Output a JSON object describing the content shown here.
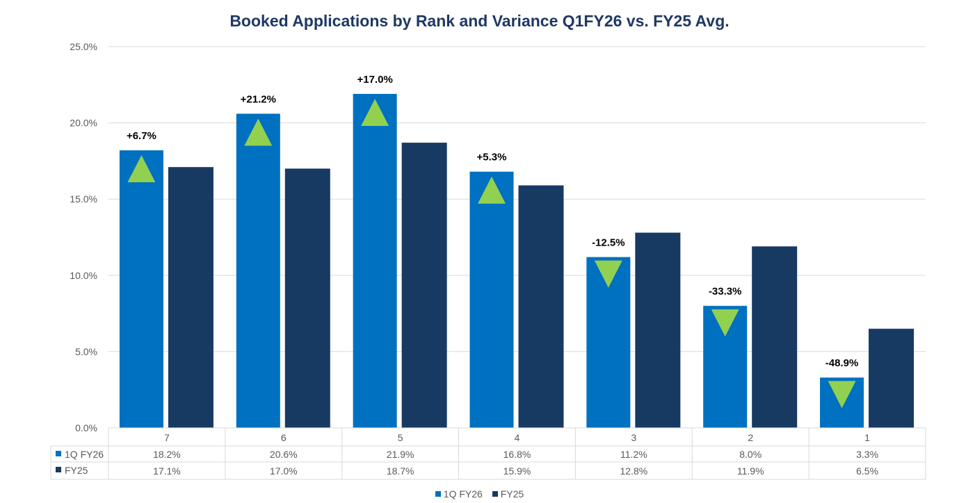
{
  "chart_data": {
    "type": "bar",
    "title": "Booked Applications by Rank and Variance Q1FY26 vs. FY25 Avg.",
    "categories": [
      "7",
      "6",
      "5",
      "4",
      "3",
      "2",
      "1"
    ],
    "series": [
      {
        "name": "1Q FY26",
        "color": "#0070C0",
        "values": [
          18.2,
          20.6,
          21.9,
          16.8,
          11.2,
          8.0,
          3.3
        ],
        "labels": [
          "18.2%",
          "20.6%",
          "21.9%",
          "16.8%",
          "11.2%",
          "8.0%",
          "3.3%"
        ]
      },
      {
        "name": "FY25",
        "color": "#173A63",
        "values": [
          17.1,
          17.0,
          18.7,
          15.9,
          12.8,
          11.9,
          6.5
        ],
        "labels": [
          "17.1%",
          "17.0%",
          "18.7%",
          "15.9%",
          "12.8%",
          "11.9%",
          "6.5%"
        ]
      }
    ],
    "variance_labels": [
      "+6.7%",
      "+21.2%",
      "+17.0%",
      "+5.3%",
      "-12.5%",
      "-33.3%",
      "-48.9%"
    ],
    "variance_direction": [
      "up",
      "up",
      "up",
      "up",
      "down",
      "down",
      "down"
    ],
    "variance_colors": {
      "up": "#92D050",
      "down": "#92D050"
    },
    "ylim": [
      0,
      25
    ],
    "yticks": [
      "0.0%",
      "5.0%",
      "10.0%",
      "15.0%",
      "20.0%",
      "25.0%"
    ],
    "grid": true,
    "legend": "bottom",
    "data_table": true
  }
}
